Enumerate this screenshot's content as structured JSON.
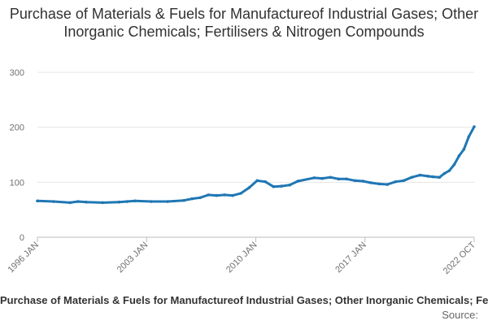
{
  "chart_data": {
    "type": "line",
    "title": "Purchase of Materials & Fuels for Manufactureof Industrial Gases; Other Inorganic Chemicals; Fertilisers & Nitrogen Compounds",
    "xlabel": "",
    "ylabel": "",
    "ylim": [
      0,
      300
    ],
    "yticks": [
      "0",
      "100",
      "200",
      "300"
    ],
    "xticks": [
      "1996 JAN",
      "2003 JAN",
      "2010 JAN",
      "2017 JAN",
      "2022 OCT"
    ],
    "grid": true,
    "legend_position": "bottom",
    "line_color": "#1f77b4",
    "series": [
      {
        "name": "Purchase of Materials & Fuels for Manufactureof Industrial Gases; Other Inorganic Chemicals; Fertilisers & Nitrogen Compounds",
        "x": [
          1996.0,
          1997.0,
          1998.0,
          1998.5,
          1999.0,
          2000.0,
          2001.0,
          2001.5,
          2002.0,
          2003.0,
          2004.0,
          2005.0,
          2005.5,
          2006.0,
          2006.5,
          2007.0,
          2007.5,
          2008.0,
          2008.5,
          2009.0,
          2009.5,
          2010.0,
          2010.5,
          2011.0,
          2011.5,
          2012.0,
          2013.0,
          2013.5,
          2014.0,
          2014.5,
          2015.0,
          2015.5,
          2016.0,
          2016.5,
          2017.0,
          2017.5,
          2018.0,
          2018.5,
          2019.0,
          2019.5,
          2020.0,
          2020.3,
          2020.7,
          2021.0,
          2021.3,
          2021.6,
          2021.9,
          2022.2,
          2022.5,
          2022.83
        ],
        "y": [
          66,
          65,
          63,
          65,
          64,
          63,
          64,
          65,
          66,
          65,
          65,
          67,
          70,
          72,
          77,
          76,
          77,
          76,
          80,
          90,
          103,
          101,
          92,
          93,
          95,
          102,
          108,
          107,
          109,
          106,
          106,
          103,
          102,
          99,
          97,
          96,
          101,
          103,
          109,
          113,
          111,
          110,
          109,
          116,
          121,
          132,
          148,
          160,
          183,
          201
        ]
      }
    ],
    "source_label": "Source:"
  }
}
